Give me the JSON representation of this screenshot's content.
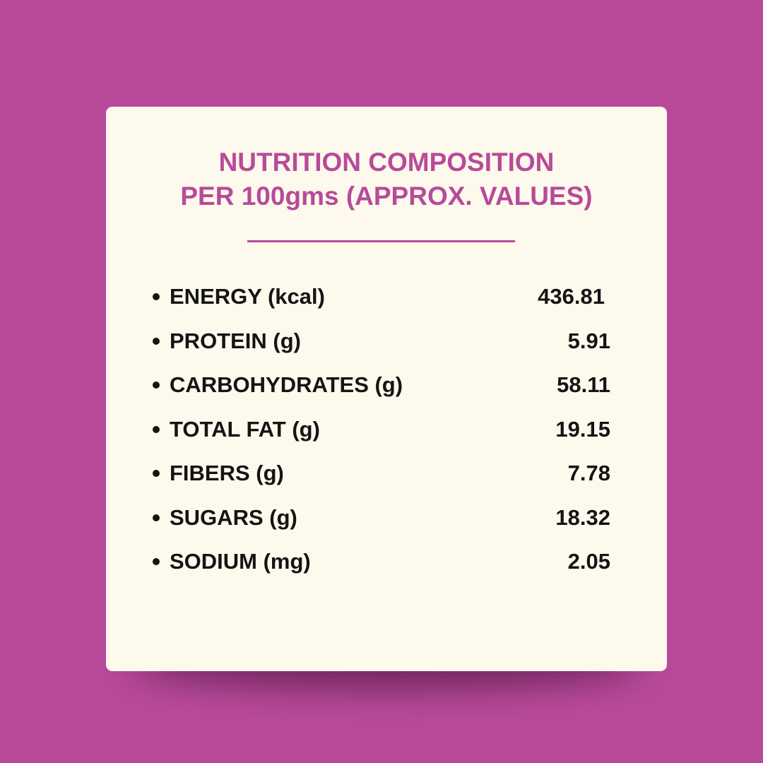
{
  "title": {
    "line1": "NUTRITION COMPOSITION",
    "line2": "PER 100gms (APPROX. VALUES)"
  },
  "nutrients": [
    {
      "label": "ENERGY (kcal)",
      "value": "436.81"
    },
    {
      "label": "PROTEIN (g)",
      "value": "5.91"
    },
    {
      "label": "CARBOHYDRATES (g)",
      "value": "58.11"
    },
    {
      "label": "TOTAL FAT (g)",
      "value": "19.15"
    },
    {
      "label": "FIBERS (g)",
      "value": "7.78"
    },
    {
      "label": "SUGARS (g)",
      "value": "18.32"
    },
    {
      "label": "SODIUM (mg)",
      "value": "2.05"
    }
  ],
  "colors": {
    "background": "#b84a9a",
    "card": "#fdf9ec",
    "accent": "#b84a9a",
    "text": "#141414"
  }
}
